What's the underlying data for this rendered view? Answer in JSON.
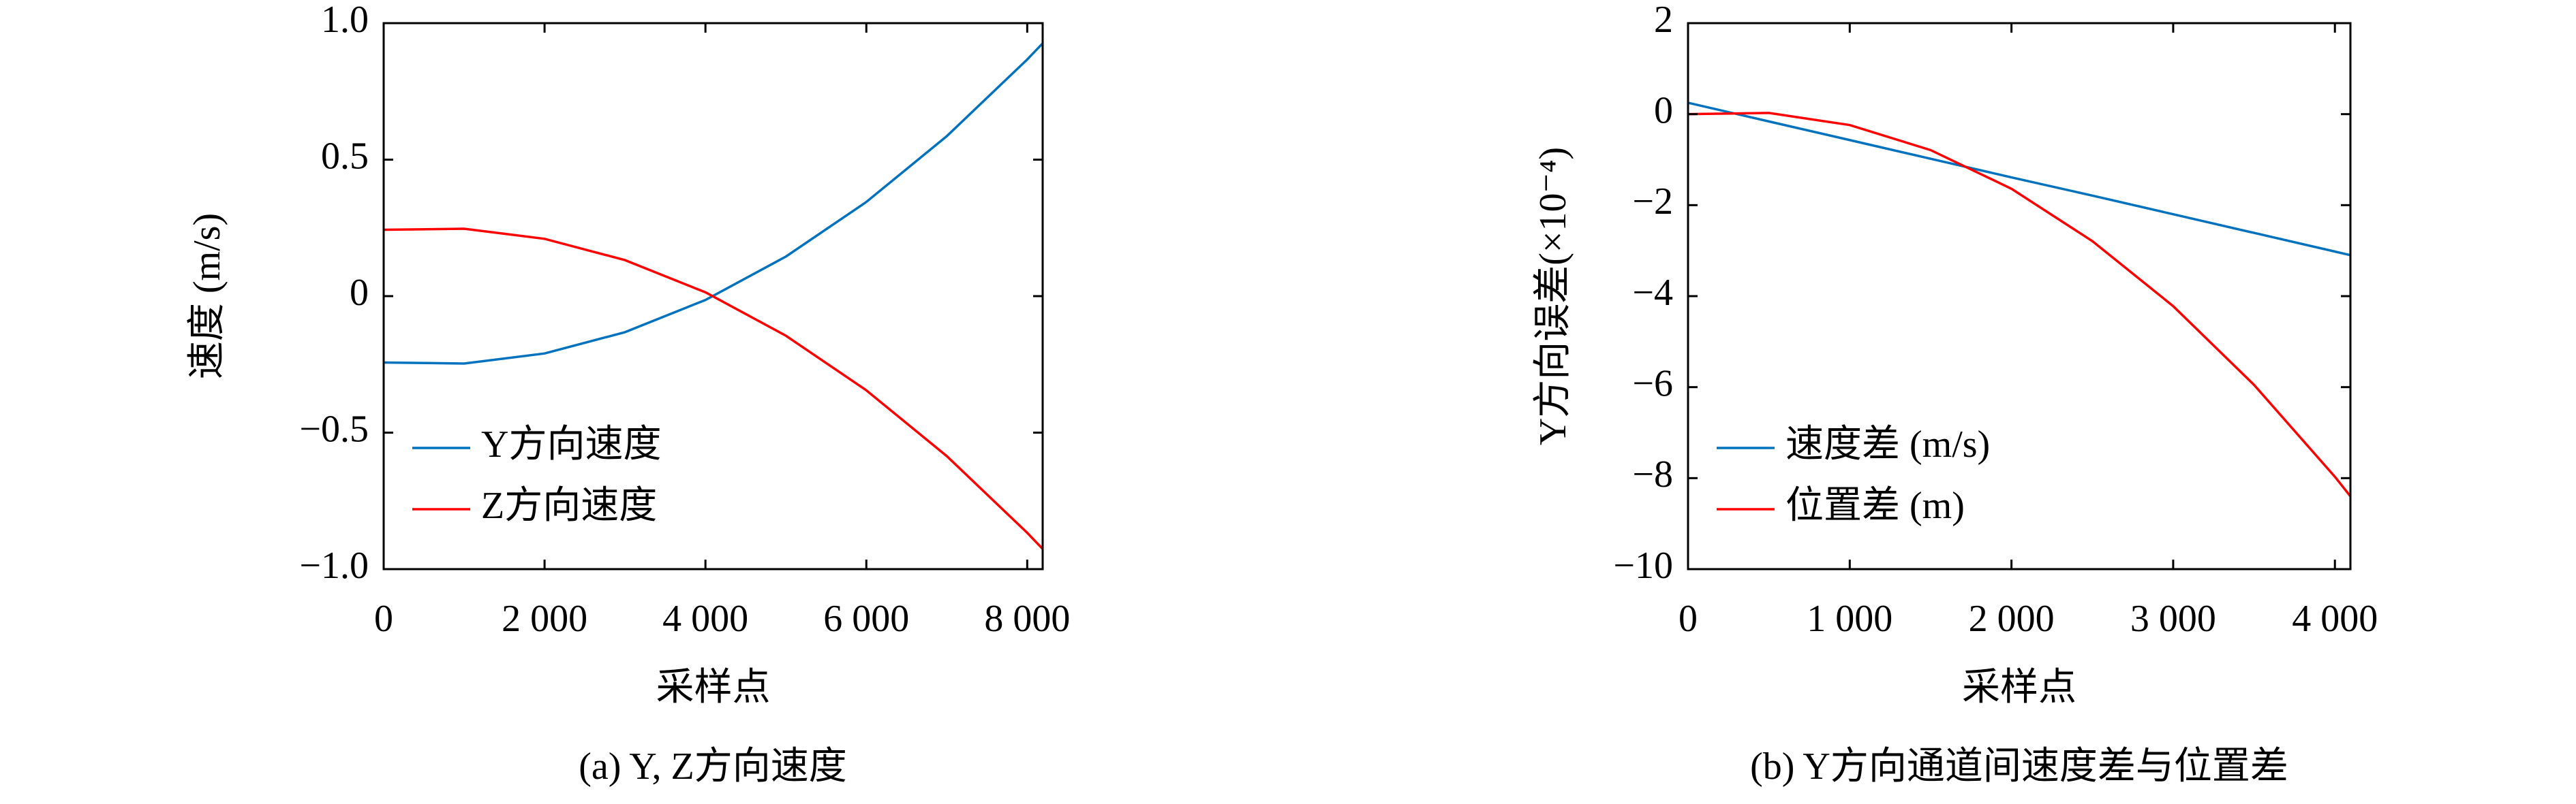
{
  "chart_data": [
    {
      "type": "line",
      "caption": "(a) Y, Z方向速度",
      "xlabel": "采样点",
      "ylabel": "速度 (m/s)",
      "x": [
        0,
        1000,
        2000,
        3000,
        4000,
        5000,
        6000,
        7000,
        8000,
        8192
      ],
      "series": [
        {
          "name": "Y方向速度",
          "color": "#0072bd",
          "values": [
            -0.243,
            -0.247,
            -0.21,
            -0.132,
            -0.014,
            0.145,
            0.345,
            0.586,
            0.867,
            0.926
          ]
        },
        {
          "name": "Z方向速度",
          "color": "#ff0000",
          "values": [
            0.243,
            0.247,
            0.21,
            0.132,
            0.014,
            -0.145,
            -0.345,
            -0.586,
            -0.867,
            -0.926
          ]
        }
      ],
      "xlim": [
        0,
        8192
      ],
      "ylim": [
        -1,
        1
      ],
      "xticks": [
        0,
        {
          "value": 2000,
          "label": "2 000"
        },
        {
          "value": 4000,
          "label": "4 000"
        },
        {
          "value": 6000,
          "label": "6 000"
        },
        {
          "value": 8000,
          "label": "8 000"
        }
      ],
      "yticks": [
        {
          "value": -1,
          "label": "−1.0"
        },
        {
          "value": -0.5,
          "label": "−0.5"
        },
        0,
        0.5,
        {
          "value": 1,
          "label": "1.0"
        }
      ],
      "legend": "lower left"
    },
    {
      "type": "line",
      "caption": "(b) Y方向通道间速度差与位置差",
      "xlabel": "采样点",
      "ylabel": "Y方向误差(×10⁻⁴)",
      "x": [
        0,
        500,
        1000,
        1500,
        2000,
        2500,
        3000,
        3500,
        4000,
        4096
      ],
      "series": [
        {
          "name": "速度差 (m/s)",
          "color": "#0072bd",
          "values": [
            0.25,
            -0.16,
            -0.57,
            -0.98,
            -1.39,
            -1.79,
            -2.2,
            -2.61,
            -3.02,
            -3.1
          ]
        },
        {
          "name": "位置差 (m)",
          "color": "#ff0000",
          "values": [
            0,
            0.027,
            -0.24,
            -0.79,
            -1.64,
            -2.79,
            -4.22,
            -5.95,
            -7.97,
            -8.4
          ]
        }
      ],
      "xlim": [
        0,
        4096
      ],
      "ylim": [
        -10,
        2
      ],
      "xticks": [
        0,
        {
          "value": 1000,
          "label": "1 000"
        },
        {
          "value": 2000,
          "label": "2 000"
        },
        {
          "value": 3000,
          "label": "3 000"
        },
        {
          "value": 4000,
          "label": "4 000"
        }
      ],
      "yticks": [
        {
          "value": -10,
          "label": "−10"
        },
        {
          "value": -8,
          "label": "−8"
        },
        {
          "value": -6,
          "label": "−6"
        },
        {
          "value": -4,
          "label": "−4"
        },
        {
          "value": -2,
          "label": "−2"
        },
        0,
        2
      ],
      "legend": "lower left"
    }
  ]
}
